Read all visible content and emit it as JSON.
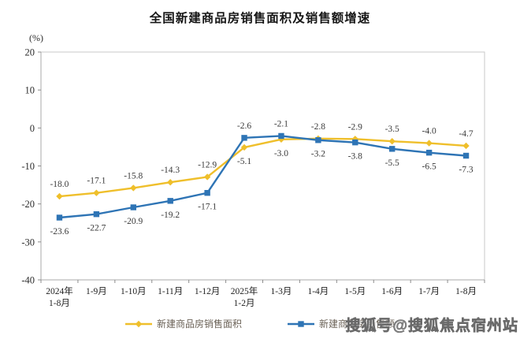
{
  "title": "全国新建商品房销售面积及销售额增速",
  "watermark": "搜狐号@搜狐焦点宿州站",
  "chart_data": {
    "type": "line",
    "title": "全国新建商品房销售面积及销售额增速",
    "ylabel": "(%)",
    "xlabel": "",
    "ylim": [
      -40,
      20
    ],
    "y_ticks": [
      20,
      10,
      0,
      -10,
      -20,
      -30,
      -40
    ],
    "grid": false,
    "legend_position": "bottom",
    "categories": [
      "2024年1-8月",
      "1-9月",
      "1-10月",
      "1-11月",
      "1-12月",
      "2025年1-2月",
      "1-3月",
      "1-4月",
      "1-5月",
      "1-6月",
      "1-7月",
      "1-8月"
    ],
    "x_tick_lines": [
      [
        "2024年",
        "1-8月"
      ],
      [
        "1-9月"
      ],
      [
        "1-10月"
      ],
      [
        "1-11月"
      ],
      [
        "1-12月"
      ],
      [
        "2025年",
        "1-2月"
      ],
      [
        "1-3月"
      ],
      [
        "1-4月"
      ],
      [
        "1-5月"
      ],
      [
        "1-6月"
      ],
      [
        "1-7月"
      ],
      [
        "1-8月"
      ]
    ],
    "series": [
      {
        "name": "新建商品房销售面积",
        "color": "#EFBF2B",
        "marker": "diamond",
        "values": [
          -18.0,
          -17.1,
          -15.8,
          -14.3,
          -12.9,
          -5.1,
          -3.0,
          -2.8,
          -2.9,
          -3.5,
          -4.0,
          -4.7
        ]
      },
      {
        "name": "新建商品房销售额",
        "color": "#2E74B5",
        "marker": "square",
        "values": [
          -23.6,
          -22.7,
          -20.9,
          -19.2,
          -17.1,
          -2.6,
          -2.1,
          -3.2,
          -3.8,
          -5.5,
          -6.5,
          -7.3
        ]
      }
    ],
    "colors": {
      "plot_border": "#c9c9c9",
      "axis_line": "#a8a8a8",
      "tick_mark": "#8c8c8c"
    }
  }
}
